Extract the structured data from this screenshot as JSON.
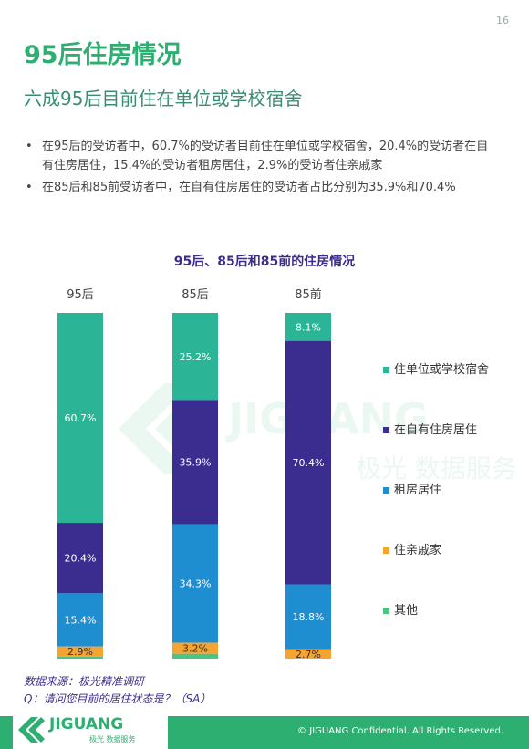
{
  "page_number": "16",
  "title": "95后住房情况",
  "subtitle": "六成95后目前住在单位或学校宿舍",
  "bullets": [
    "在95后的受访者中，60.7%的受访者目前住在单位或学校宿舍，20.4%的受访者在自有住房居住，15.4%的受访者租房居住，2.9%的受访者住亲戚家",
    "在85后和85前受访者中，在自有住房居住的受访者占比分别为35.9%和70.4%"
  ],
  "chart_data": {
    "type": "bar",
    "stacked": true,
    "percent": true,
    "title": "95后、85后和85前的住房情况",
    "categories": [
      "95后",
      "85后",
      "85前"
    ],
    "series": [
      {
        "name": "住单位或学校宿舍",
        "color": "#2bb596",
        "values": [
          60.7,
          25.2,
          8.1
        ]
      },
      {
        "name": "在自有住房居住",
        "color": "#3b2d8f",
        "values": [
          20.4,
          35.9,
          70.4
        ]
      },
      {
        "name": "租房居住",
        "color": "#1f8ed1",
        "values": [
          15.4,
          34.3,
          18.8
        ]
      },
      {
        "name": "住亲戚家",
        "color": "#f5a431",
        "values": [
          2.9,
          3.2,
          2.7
        ]
      },
      {
        "name": "其他",
        "color": "#4ec484",
        "values": [
          0.6,
          1.4,
          0
        ]
      }
    ],
    "labels": [
      [
        "60.7%",
        "25.2%",
        "8.1%"
      ],
      [
        "20.4%",
        "35.9%",
        "70.4%"
      ],
      [
        "15.4%",
        "34.3%",
        "18.8%"
      ],
      [
        "2.9%",
        "3.2%",
        "2.7%"
      ],
      [
        "",
        "",
        ""
      ]
    ],
    "legend_position": "right"
  },
  "watermark": {
    "brand": "JIGUANG",
    "tagline": "极光 数据服务"
  },
  "source": {
    "line1": "数据来源：极光精准调研",
    "line2": "Q：请问您目前的居住状态是？（SA）"
  },
  "footer": {
    "logo_text": "JIGUANG",
    "logo_sub": "极光 数据服务",
    "copyright": "© JIGUANG  Confidential. All Rights Reserved."
  }
}
